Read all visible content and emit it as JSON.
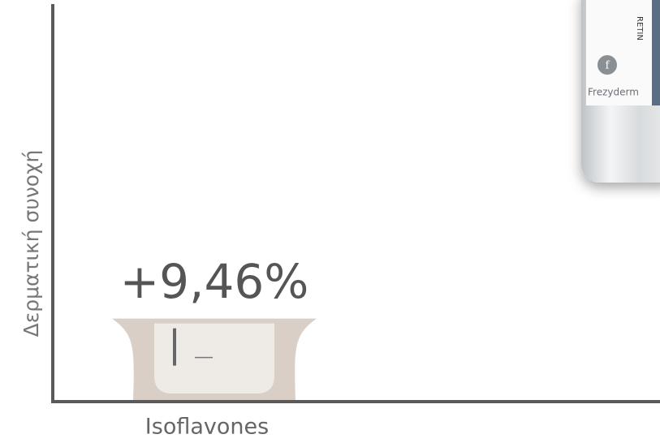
{
  "chart_data": {
    "type": "bar",
    "y_label": "Δερματική συνοχή",
    "categories": [
      "Isoflavones"
    ],
    "values": [
      9.46
    ],
    "value_labels": [
      "+9,46%"
    ],
    "color": "#d9cfc6",
    "ylim": [
      0,
      46
    ]
  },
  "product": {
    "brand": "Frezyderm",
    "label": "RETIN"
  }
}
